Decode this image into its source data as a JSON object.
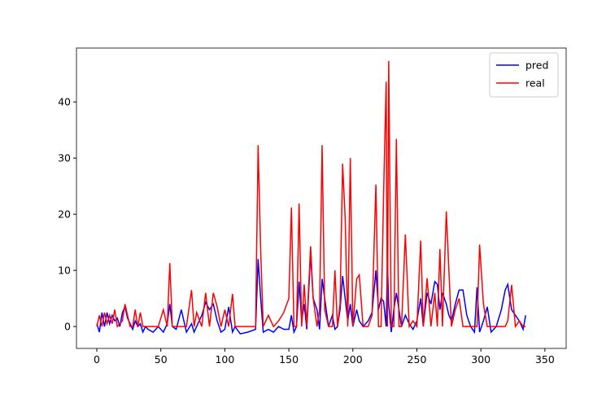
{
  "chart_data": {
    "type": "line",
    "x": [
      0,
      2,
      4,
      6,
      8,
      10,
      12,
      14,
      16,
      18,
      20,
      22,
      24,
      26,
      28,
      30,
      32,
      34,
      36,
      38,
      40,
      44,
      48,
      52,
      55,
      57,
      59,
      62,
      66,
      70,
      74,
      76,
      78,
      82,
      85,
      88,
      91,
      94,
      97,
      100,
      103,
      106,
      108,
      112,
      118,
      124,
      126,
      128,
      130,
      134,
      138,
      142,
      146,
      150,
      152,
      154,
      156,
      158,
      160,
      162,
      164,
      167,
      169,
      172,
      174,
      176,
      178,
      181,
      184,
      186,
      188,
      190,
      192,
      194,
      196,
      198,
      200,
      203,
      205,
      208,
      212,
      215,
      218,
      220,
      222,
      224,
      226,
      227,
      228,
      230,
      232,
      234,
      236,
      238,
      241,
      244,
      247,
      250,
      253,
      255,
      258,
      261,
      264,
      266,
      268,
      270,
      273,
      275,
      277,
      280,
      283,
      286,
      289,
      292,
      295,
      297,
      299,
      302,
      305,
      308,
      312,
      316,
      319,
      321,
      324,
      327,
      330,
      333,
      335
    ],
    "series": [
      {
        "name": "pred",
        "color": "#0000ff",
        "values": [
          0.5,
          -1,
          2.5,
          0,
          2.5,
          0.5,
          2,
          1,
          1.5,
          0,
          2.5,
          3.5,
          1.5,
          0.5,
          -0.5,
          1,
          0,
          0.5,
          -1,
          0,
          -0.5,
          -1,
          0,
          -1,
          0.5,
          4,
          0,
          -0.5,
          3,
          -1,
          0.5,
          -1,
          0,
          2,
          4.3,
          3,
          4,
          1,
          -1,
          -0.5,
          3.5,
          -1,
          0,
          -1.3,
          -1,
          -0.5,
          12,
          5,
          -1,
          -0.5,
          -1,
          0,
          -0.5,
          -0.5,
          2,
          -1,
          0,
          8,
          1,
          4,
          -0.5,
          13,
          5,
          3,
          -0.5,
          8.5,
          5,
          0,
          2,
          -0.5,
          0,
          3,
          9,
          5,
          1,
          4,
          0,
          3,
          1,
          0,
          1,
          2.5,
          10,
          3,
          5,
          4.5,
          0,
          11.5,
          4,
          -1,
          3,
          6,
          3,
          0,
          2,
          0.5,
          -0.5,
          1,
          5,
          0,
          6,
          4,
          8,
          7.5,
          3,
          6,
          4,
          2,
          1,
          4,
          6.5,
          6.5,
          2,
          0,
          -1,
          7,
          -1,
          1,
          3.5,
          -1,
          0,
          3,
          6.5,
          7.5,
          3,
          2,
          1,
          -0.5,
          2
        ]
      },
      {
        "name": "real",
        "color": "#ff0000",
        "values": [
          0,
          2,
          0,
          2.5,
          0.5,
          2,
          0.5,
          3,
          0,
          0.5,
          1,
          4,
          2,
          0,
          0,
          3,
          0,
          2.5,
          0,
          0,
          0,
          0,
          0,
          3,
          0,
          11.3,
          0,
          0,
          0,
          0,
          6.5,
          0,
          2.5,
          0,
          6,
          0,
          6,
          3.5,
          0,
          3,
          0,
          5.8,
          0,
          0,
          0,
          0,
          32.3,
          13.5,
          0,
          2,
          0,
          1,
          2.5,
          5,
          21.2,
          0,
          0,
          21.9,
          0,
          7.5,
          0,
          14.3,
          5,
          0,
          3,
          32.3,
          3,
          0,
          0,
          10,
          0,
          4,
          29,
          19.3,
          0,
          30,
          0,
          8.5,
          9.2,
          0,
          0,
          2,
          25.3,
          0,
          0,
          23.5,
          43.6,
          0,
          47.3,
          0,
          0,
          33.4,
          0,
          0,
          16.4,
          0,
          1,
          0,
          15.3,
          0,
          8.6,
          0,
          6,
          0,
          13.8,
          0,
          20.5,
          10,
          0,
          3,
          5,
          0,
          0,
          0,
          0,
          0,
          14.6,
          4,
          0,
          0,
          0,
          0,
          0,
          1,
          7.4,
          0,
          1,
          0,
          0
        ]
      }
    ],
    "xlim": [
      -15.9,
      366.6
    ],
    "ylim": [
      -3.9,
      49.6
    ],
    "xticks": [
      0,
      50,
      100,
      150,
      200,
      250,
      300,
      350
    ],
    "yticks": [
      0,
      10,
      20,
      30,
      40
    ],
    "legend": "upper right"
  }
}
